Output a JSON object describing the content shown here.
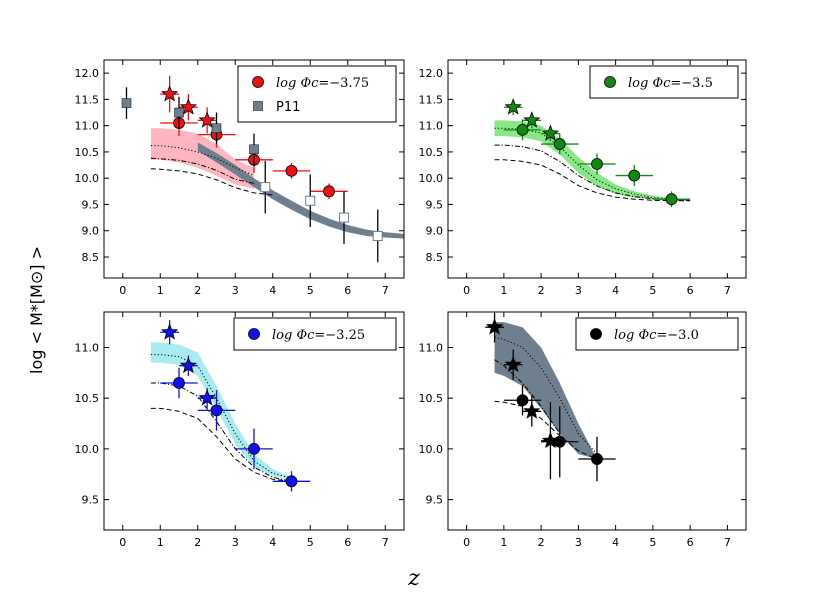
{
  "chart_data": {
    "type": "scatter",
    "xlabel": "z",
    "ylabel": "log < M*[M⊙] >",
    "panels": [
      {
        "id": "p1",
        "legend": [
          {
            "label_prefix": "log Φc",
            "label_value": "=−3.75",
            "marker": "circle",
            "color": "#ee1111"
          },
          {
            "label_prefix": "",
            "label_value": "P11",
            "marker": "square",
            "color": "#6e7f8f"
          }
        ],
        "xlim": [
          -0.5,
          7.5
        ],
        "ylim": [
          8.1,
          12.25
        ],
        "xticks": [
          0,
          1,
          2,
          3,
          4,
          5,
          6,
          7
        ],
        "yticks": [
          8.5,
          9.0,
          9.5,
          10.0,
          10.5,
          11.0,
          11.5,
          12.0
        ],
        "band_color": "#ffb6c1",
        "band": {
          "x": [
            0.75,
            1.0,
            1.5,
            2.0,
            2.5,
            3.0,
            3.5
          ],
          "lo": [
            10.35,
            10.35,
            10.3,
            10.2,
            10.05,
            9.88,
            9.8
          ],
          "hi": [
            10.95,
            10.95,
            10.92,
            10.85,
            10.65,
            10.35,
            10.2
          ]
        },
        "dotted": {
          "x": [
            0.75,
            1.0,
            1.5,
            2.0,
            2.5,
            3.0,
            3.5
          ],
          "y": [
            10.62,
            10.62,
            10.58,
            10.5,
            10.38,
            10.2,
            10.05
          ]
        },
        "dashdot": {
          "x": [
            0.75,
            1.0,
            1.5,
            2.0,
            2.5,
            3.0,
            3.5
          ],
          "y": [
            10.38,
            10.37,
            10.34,
            10.27,
            10.15,
            9.98,
            9.9
          ]
        },
        "dashed": {
          "x": [
            0.75,
            1.0,
            1.5,
            2.0,
            2.5,
            3.0,
            3.5,
            4.0
          ],
          "y": [
            10.18,
            10.17,
            10.14,
            10.08,
            9.97,
            9.82,
            9.72,
            9.68
          ]
        },
        "ref_band": {
          "color": "#6e7f8f",
          "x": [
            2.0,
            2.5,
            3.0,
            3.5,
            4.0,
            4.5,
            5.0,
            5.5,
            6.0,
            6.5,
            7.0,
            7.5
          ],
          "lo": [
            10.52,
            10.3,
            10.07,
            9.83,
            9.6,
            9.4,
            9.22,
            9.08,
            8.97,
            8.9,
            8.87,
            8.85
          ],
          "hi": [
            10.68,
            10.48,
            10.25,
            10.0,
            9.77,
            9.57,
            9.38,
            9.23,
            9.11,
            9.02,
            8.97,
            8.94
          ]
        },
        "series": [
          {
            "name": "circles",
            "marker": "circle",
            "color": "#ee1111",
            "points": [
              {
                "x": 1.5,
                "y": 11.05,
                "xerr": 0.5,
                "yerr": 0.25
              },
              {
                "x": 2.5,
                "y": 10.83,
                "xerr": 0.5,
                "yerr": 0.25
              },
              {
                "x": 3.5,
                "y": 10.35,
                "xerr": 0.5,
                "yerr": 0.25
              },
              {
                "x": 4.5,
                "y": 10.14,
                "xerr": 0.5,
                "yerr": 0.15
              },
              {
                "x": 5.5,
                "y": 9.75,
                "xerr": 0.5,
                "yerr": 0.15
              }
            ]
          },
          {
            "name": "stars",
            "marker": "star",
            "color": "#ee1111",
            "points": [
              {
                "x": 1.25,
                "y": 11.6,
                "xerr": 0.25,
                "yerr": 0.35
              },
              {
                "x": 1.75,
                "y": 11.35,
                "xerr": 0.25,
                "yerr": 0.25
              },
              {
                "x": 2.25,
                "y": 11.1,
                "xerr": 0.25,
                "yerr": 0.25
              }
            ]
          },
          {
            "name": "P11 filled",
            "marker": "square",
            "color": "#6e7f8f",
            "points": [
              {
                "x": 0.1,
                "y": 11.43,
                "xerr": 0,
                "yerr": 0.3
              },
              {
                "x": 1.5,
                "y": 11.25,
                "xerr": 0,
                "yerr": 0.3
              },
              {
                "x": 2.5,
                "y": 10.95,
                "xerr": 0,
                "yerr": 0.3
              },
              {
                "x": 3.5,
                "y": 10.55,
                "xerr": 0,
                "yerr": 0.3
              }
            ]
          },
          {
            "name": "P11 open",
            "marker": "open-square",
            "color": "#6e7f8f",
            "points": [
              {
                "x": 3.8,
                "y": 9.83,
                "xerr": 0,
                "yerr": 0.5
              },
              {
                "x": 5.0,
                "y": 9.57,
                "xerr": 0,
                "yerr": 0.5
              },
              {
                "x": 5.9,
                "y": 9.25,
                "xerr": 0,
                "yerr": 0.5
              },
              {
                "x": 6.8,
                "y": 8.9,
                "xerr": 0,
                "yerr": 0.5
              }
            ]
          }
        ]
      },
      {
        "id": "p2",
        "legend": [
          {
            "label_prefix": "log Φc",
            "label_value": "=−3.5",
            "marker": "circle",
            "color": "#118811"
          }
        ],
        "xlim": [
          -0.5,
          7.5
        ],
        "ylim": [
          8.1,
          12.25
        ],
        "xticks": [
          0,
          1,
          2,
          3,
          4,
          5,
          6,
          7
        ],
        "yticks": [
          8.5,
          9.0,
          9.5,
          10.0,
          10.5,
          11.0,
          11.5,
          12.0
        ],
        "band_color": "#88e888",
        "band": {
          "x": [
            0.75,
            1.0,
            1.5,
            2.0,
            2.5,
            3.0,
            3.5,
            4.0,
            4.5,
            5.0,
            5.5
          ],
          "lo": [
            10.8,
            10.8,
            10.78,
            10.7,
            10.45,
            10.1,
            9.85,
            9.7,
            9.63,
            9.6,
            9.6
          ],
          "hi": [
            11.1,
            11.1,
            11.08,
            11.0,
            10.75,
            10.4,
            10.1,
            9.88,
            9.75,
            9.67,
            9.62
          ]
        },
        "dotted": {
          "x": [
            0.75,
            1.0,
            1.5,
            2.0,
            2.5,
            3.0,
            3.5,
            4.0,
            4.5,
            5.0,
            5.5,
            6.0
          ],
          "y": [
            10.95,
            10.95,
            10.93,
            10.86,
            10.6,
            10.25,
            9.97,
            9.8,
            9.7,
            9.63,
            9.6,
            9.58
          ]
        },
        "dashdot": {
          "x": [
            0.75,
            1.0,
            1.5,
            2.0,
            2.5,
            3.0,
            3.5,
            4.0,
            4.5,
            5.0,
            5.5,
            6.0
          ],
          "y": [
            10.63,
            10.63,
            10.6,
            10.52,
            10.32,
            10.05,
            9.85,
            9.72,
            9.65,
            9.61,
            9.59,
            9.58
          ]
        },
        "dashed": {
          "x": [
            0.75,
            1.0,
            1.5,
            2.0,
            2.5,
            3.0,
            3.5,
            4.0,
            4.5,
            5.0,
            5.5,
            6.0
          ],
          "y": [
            10.35,
            10.35,
            10.32,
            10.25,
            10.08,
            9.86,
            9.72,
            9.64,
            9.6,
            9.58,
            9.57,
            9.57
          ]
        },
        "series": [
          {
            "name": "circles",
            "marker": "circle",
            "color": "#118811",
            "points": [
              {
                "x": 1.5,
                "y": 10.92,
                "xerr": 0.5,
                "yerr": 0.2
              },
              {
                "x": 2.5,
                "y": 10.65,
                "xerr": 0.5,
                "yerr": 0.2
              },
              {
                "x": 3.5,
                "y": 10.27,
                "xerr": 0.5,
                "yerr": 0.2
              },
              {
                "x": 4.5,
                "y": 10.05,
                "xerr": 0.5,
                "yerr": 0.2
              },
              {
                "x": 5.5,
                "y": 9.6,
                "xerr": 0.5,
                "yerr": 0.15
              }
            ]
          },
          {
            "name": "stars",
            "marker": "star",
            "color": "#118811",
            "points": [
              {
                "x": 1.25,
                "y": 11.35,
                "xerr": 0.25,
                "yerr": 0.15
              },
              {
                "x": 1.75,
                "y": 11.1,
                "xerr": 0.25,
                "yerr": 0.15
              },
              {
                "x": 2.25,
                "y": 10.85,
                "xerr": 0.25,
                "yerr": 0.15
              }
            ]
          }
        ]
      },
      {
        "id": "p3",
        "legend": [
          {
            "label_prefix": "log Φc",
            "label_value": "=−3.25",
            "marker": "circle",
            "color": "#1111ee"
          }
        ],
        "xlim": [
          -0.5,
          7.5
        ],
        "ylim": [
          9.2,
          11.35
        ],
        "xticks": [
          0,
          1,
          2,
          3,
          4,
          5,
          6,
          7
        ],
        "yticks": [
          9.5,
          10.0,
          10.5,
          11.0
        ],
        "band_color": "#a8ecf2",
        "band": {
          "x": [
            0.75,
            1.0,
            1.5,
            2.0,
            2.5,
            3.0,
            3.5,
            4.0,
            4.5
          ],
          "lo": [
            10.85,
            10.85,
            10.83,
            10.72,
            10.4,
            10.05,
            9.82,
            9.73,
            9.7
          ],
          "hi": [
            11.05,
            11.05,
            11.03,
            10.95,
            10.62,
            10.25,
            9.95,
            9.8,
            9.72
          ]
        },
        "dotted": {
          "x": [
            0.75,
            1.0,
            1.5,
            2.0,
            2.5,
            3.0,
            3.5,
            4.0,
            4.5
          ],
          "y": [
            10.93,
            10.93,
            10.91,
            10.82,
            10.5,
            10.15,
            9.88,
            9.76,
            9.71
          ]
        },
        "dashdot": {
          "x": [
            0.75,
            1.0,
            1.5,
            2.0,
            2.5,
            3.0,
            3.5,
            4.0,
            4.5
          ],
          "y": [
            10.65,
            10.65,
            10.62,
            10.52,
            10.27,
            10.0,
            9.82,
            9.72,
            9.68
          ]
        },
        "dashed": {
          "x": [
            0.75,
            1.0,
            1.5,
            2.0,
            2.5,
            3.0,
            3.5,
            4.0,
            4.5
          ],
          "y": [
            10.4,
            10.4,
            10.37,
            10.3,
            10.12,
            9.9,
            9.77,
            9.7,
            9.68
          ]
        },
        "series": [
          {
            "name": "circles",
            "marker": "circle",
            "color": "#1111ee",
            "points": [
              {
                "x": 1.5,
                "y": 10.65,
                "xerr": 0.5,
                "yerr": 0.15
              },
              {
                "x": 2.5,
                "y": 10.38,
                "xerr": 0.5,
                "yerr": 0.2
              },
              {
                "x": 3.5,
                "y": 10.0,
                "xerr": 0.5,
                "yerr": 0.2
              },
              {
                "x": 4.5,
                "y": 9.68,
                "xerr": 0.5,
                "yerr": 0.1
              }
            ]
          },
          {
            "name": "stars",
            "marker": "star",
            "color": "#1111ee",
            "points": [
              {
                "x": 1.25,
                "y": 11.15,
                "xerr": 0.25,
                "yerr": 0.12
              },
              {
                "x": 1.75,
                "y": 10.82,
                "xerr": 0.25,
                "yerr": 0.1
              },
              {
                "x": 2.25,
                "y": 10.5,
                "xerr": 0.25,
                "yerr": 0.1
              }
            ]
          }
        ]
      },
      {
        "id": "p4",
        "legend": [
          {
            "label_prefix": "log Φc",
            "label_value": "=−3.0",
            "marker": "circle",
            "color": "#000000"
          }
        ],
        "xlim": [
          -0.5,
          7.5
        ],
        "ylim": [
          9.2,
          11.35
        ],
        "xticks": [
          0,
          1,
          2,
          3,
          4,
          5,
          6,
          7
        ],
        "yticks": [
          9.5,
          10.0,
          10.5,
          11.0
        ],
        "band_color": "#6e7f8f",
        "band": {
          "x": [
            0.75,
            1.0,
            1.5,
            2.0,
            2.5,
            3.0,
            3.5
          ],
          "lo": [
            10.75,
            10.72,
            10.62,
            10.4,
            10.15,
            9.95,
            9.9
          ],
          "hi": [
            11.25,
            11.25,
            11.2,
            11.0,
            10.65,
            10.25,
            9.9
          ]
        },
        "dotted": {
          "x": [
            0.75,
            1.0,
            1.5,
            2.0,
            2.5,
            3.0,
            3.5
          ],
          "y": [
            11.1,
            11.08,
            11.0,
            10.8,
            10.5,
            10.15,
            9.95
          ]
        },
        "dashdot": {
          "x": [
            0.75,
            1.0,
            1.5,
            2.0,
            2.5
          ],
          "y": [
            10.88,
            10.82,
            10.65,
            10.42,
            10.15
          ]
        },
        "dashed": {
          "x": [
            0.75,
            1.0,
            1.5,
            2.0,
            2.5,
            3.0,
            3.5
          ],
          "y": [
            10.47,
            10.46,
            10.42,
            10.3,
            10.13,
            9.98,
            9.9
          ]
        },
        "series": [
          {
            "name": "circles",
            "marker": "circle",
            "color": "#000000",
            "points": [
              {
                "x": 1.5,
                "y": 10.48,
                "xerr": 0.5,
                "yerr": 0.15
              },
              {
                "x": 2.5,
                "y": 10.07,
                "xerr": 0.5,
                "yerr": 0.35
              },
              {
                "x": 3.5,
                "y": 9.9,
                "xerr": 0.5,
                "yerr": 0.22
              }
            ]
          },
          {
            "name": "stars",
            "marker": "star",
            "color": "#000000",
            "points": [
              {
                "x": 0.75,
                "y": 11.2,
                "xerr": 0.25,
                "yerr": 0.15
              },
              {
                "x": 1.25,
                "y": 10.83,
                "xerr": 0.25,
                "yerr": 0.15
              },
              {
                "x": 1.75,
                "y": 10.37,
                "xerr": 0.25,
                "yerr": 0.15
              },
              {
                "x": 2.25,
                "y": 10.08,
                "xerr": 0.25,
                "yerr": 0.38
              }
            ]
          }
        ]
      }
    ]
  }
}
